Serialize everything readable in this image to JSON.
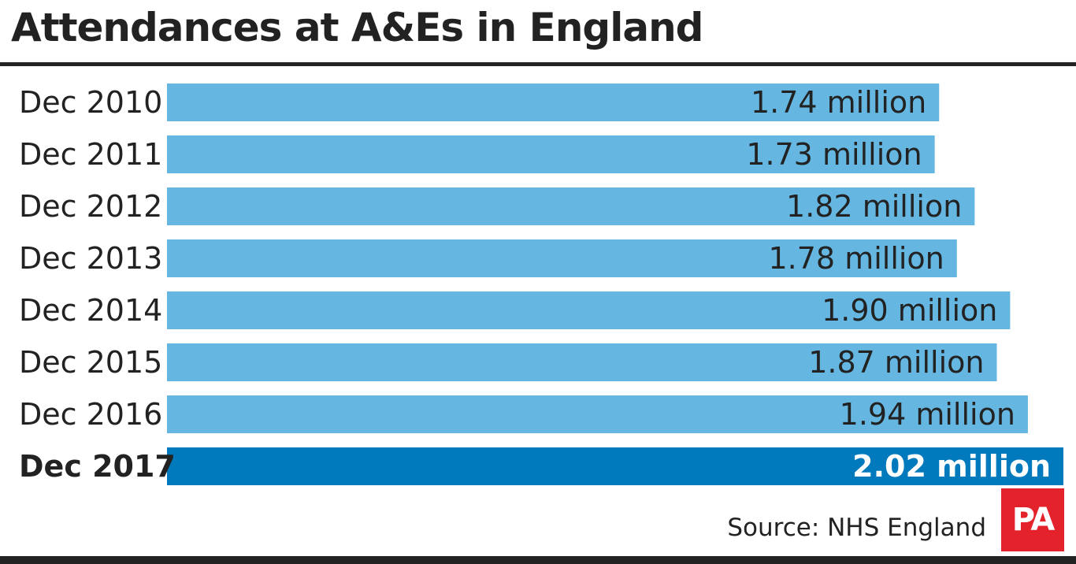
{
  "title": "Attendances at A&Es in England",
  "source": "Source: NHS England",
  "logo_text": "PA",
  "colors": {
    "bar": "#65b7e2",
    "bar_highlight": "#0079bd",
    "text": "#222222",
    "rule": "#222222",
    "logo": "#e4222b"
  },
  "chart_data": {
    "type": "bar",
    "orientation": "horizontal",
    "title": "Attendances at A&Es in England",
    "xlabel": "",
    "ylabel": "",
    "categories": [
      "Dec 2010",
      "Dec 2011",
      "Dec 2012",
      "Dec 2013",
      "Dec 2014",
      "Dec 2015",
      "Dec 2016",
      "Dec 2017"
    ],
    "values": [
      1.74,
      1.73,
      1.82,
      1.78,
      1.9,
      1.87,
      1.94,
      2.02
    ],
    "value_labels": [
      "1.74 million",
      "1.73 million",
      "1.82 million",
      "1.78 million",
      "1.90 million",
      "1.87 million",
      "1.94 million",
      "2.02 million"
    ],
    "unit": "million",
    "highlight_category": "Dec 2017",
    "xlim": [
      0,
      2.02
    ],
    "grid": false,
    "legend": "none"
  }
}
